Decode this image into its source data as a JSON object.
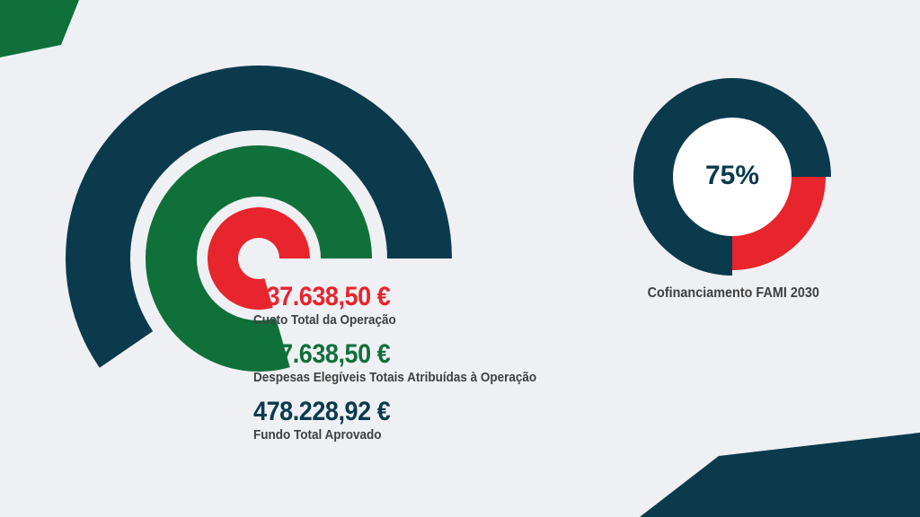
{
  "colors": {
    "background": "#eff0f4",
    "navy": "#0b3a4d",
    "green": "#10703a",
    "red": "#e8242c",
    "label": "#404040"
  },
  "chart_data": [
    {
      "type": "radial-bar",
      "series": [
        {
          "value": 637638.5,
          "display": "637.638,50 €",
          "label": "Custo Total da Operação",
          "color": "#e8242c"
        },
        {
          "value": 637638.5,
          "display": "637.638,50 €",
          "label": "Despesas Elegíveis Totais Atribuídas à Operação",
          "color": "#10703a"
        },
        {
          "value": 478228.92,
          "display": "478.228,92 €",
          "label": "Fundo Total Aprovado",
          "color": "#0b3a4d"
        }
      ]
    },
    {
      "type": "pie",
      "center_label": "75%",
      "caption": "Cofinanciamento FAMI 2030",
      "slices": [
        {
          "value": 75,
          "color": "#0b3a4d"
        },
        {
          "value": 25,
          "color": "#e8242c"
        }
      ]
    }
  ]
}
